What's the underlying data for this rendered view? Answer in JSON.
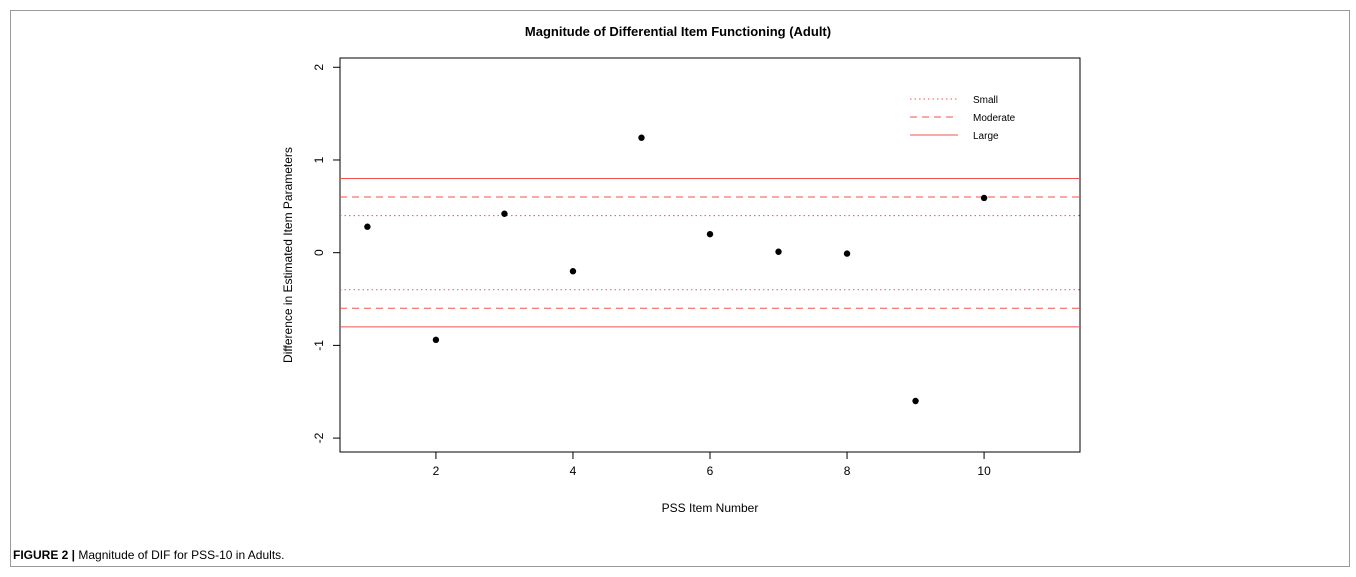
{
  "chart_data": {
    "type": "scatter",
    "title": "Magnitude of Differential Item Functioning (Adult)",
    "xlabel": "PSS Item Number",
    "ylabel": "Difference in Estimated Item Parameters",
    "xlim": [
      0.6,
      11.4
    ],
    "ylim": [
      -2.15,
      2.1
    ],
    "xticks": [
      2,
      4,
      6,
      8,
      10
    ],
    "yticks": [
      -2,
      -1,
      0,
      1,
      2
    ],
    "points": [
      {
        "x": 1,
        "y": 0.28
      },
      {
        "x": 2,
        "y": -0.94
      },
      {
        "x": 3,
        "y": 0.42
      },
      {
        "x": 4,
        "y": -0.2
      },
      {
        "x": 5,
        "y": 1.24
      },
      {
        "x": 6,
        "y": 0.2
      },
      {
        "x": 7,
        "y": 0.01
      },
      {
        "x": 8,
        "y": -0.01
      },
      {
        "x": 9,
        "y": -1.6
      },
      {
        "x": 10,
        "y": 0.59
      }
    ],
    "reference_lines": [
      {
        "name": "Small",
        "style": "dotted",
        "values": [
          0.4,
          -0.4
        ]
      },
      {
        "name": "Moderate",
        "style": "dashed",
        "values": [
          0.6,
          -0.6
        ]
      },
      {
        "name": "Large",
        "style": "solid",
        "values": [
          0.8,
          -0.8
        ]
      }
    ],
    "legend": [
      "Small",
      "Moderate",
      "Large"
    ],
    "legend_position": "top-right",
    "grid": false,
    "colors": {
      "line": "#ef5350",
      "point": "#000000",
      "axis": "#000000"
    }
  },
  "caption": {
    "label": "FIGURE 2 |",
    "text": " Magnitude of DIF for PSS-10 in Adults."
  }
}
